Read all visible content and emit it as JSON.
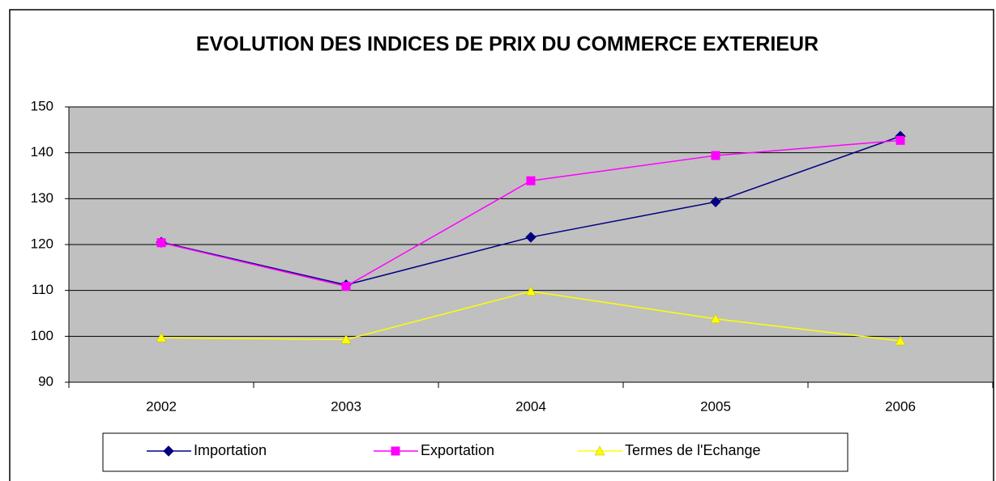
{
  "chart_data": {
    "type": "line",
    "title": "EVOLUTION DES INDICES DE PRIX DU COMMERCE EXTERIEUR",
    "categories": [
      "2002",
      "2003",
      "2004",
      "2005",
      "2006"
    ],
    "series": [
      {
        "name": "Importation",
        "color": "#000080",
        "marker": "diamond",
        "values": [
          120.5,
          111.2,
          121.6,
          129.3,
          143.6
        ]
      },
      {
        "name": "Exportation",
        "color": "#FF00FF",
        "marker": "square",
        "values": [
          120.4,
          110.9,
          133.9,
          139.4,
          142.7
        ]
      },
      {
        "name": "Termes de l'Echange",
        "color": "#FFFF00",
        "marker": "triangle",
        "values": [
          99.7,
          99.3,
          109.8,
          103.8,
          99.0
        ]
      }
    ],
    "ylim": [
      90,
      150
    ],
    "yticks": [
      90,
      100,
      110,
      120,
      130,
      140,
      150
    ],
    "grid": true,
    "legend": "bottom"
  }
}
